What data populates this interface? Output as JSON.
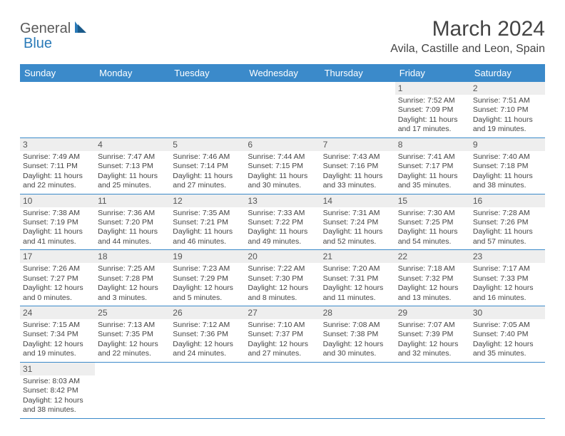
{
  "logo": {
    "part1": "General",
    "part2": "Blue"
  },
  "title": "March 2024",
  "location": "Avila, Castille and Leon, Spain",
  "colors": {
    "header_bg": "#3b8aca",
    "header_fg": "#ffffff",
    "daynum_bg": "#eeeeee",
    "border": "#3b8aca",
    "logo_blue": "#2a7ab8",
    "logo_gray": "#5a5a5a"
  },
  "weekdays": [
    "Sunday",
    "Monday",
    "Tuesday",
    "Wednesday",
    "Thursday",
    "Friday",
    "Saturday"
  ],
  "weeks": [
    [
      {
        "n": "",
        "lines": []
      },
      {
        "n": "",
        "lines": []
      },
      {
        "n": "",
        "lines": []
      },
      {
        "n": "",
        "lines": []
      },
      {
        "n": "",
        "lines": []
      },
      {
        "n": "1",
        "lines": [
          "Sunrise: 7:52 AM",
          "Sunset: 7:09 PM",
          "Daylight: 11 hours and 17 minutes."
        ]
      },
      {
        "n": "2",
        "lines": [
          "Sunrise: 7:51 AM",
          "Sunset: 7:10 PM",
          "Daylight: 11 hours and 19 minutes."
        ]
      }
    ],
    [
      {
        "n": "3",
        "lines": [
          "Sunrise: 7:49 AM",
          "Sunset: 7:11 PM",
          "Daylight: 11 hours and 22 minutes."
        ]
      },
      {
        "n": "4",
        "lines": [
          "Sunrise: 7:47 AM",
          "Sunset: 7:13 PM",
          "Daylight: 11 hours and 25 minutes."
        ]
      },
      {
        "n": "5",
        "lines": [
          "Sunrise: 7:46 AM",
          "Sunset: 7:14 PM",
          "Daylight: 11 hours and 27 minutes."
        ]
      },
      {
        "n": "6",
        "lines": [
          "Sunrise: 7:44 AM",
          "Sunset: 7:15 PM",
          "Daylight: 11 hours and 30 minutes."
        ]
      },
      {
        "n": "7",
        "lines": [
          "Sunrise: 7:43 AM",
          "Sunset: 7:16 PM",
          "Daylight: 11 hours and 33 minutes."
        ]
      },
      {
        "n": "8",
        "lines": [
          "Sunrise: 7:41 AM",
          "Sunset: 7:17 PM",
          "Daylight: 11 hours and 35 minutes."
        ]
      },
      {
        "n": "9",
        "lines": [
          "Sunrise: 7:40 AM",
          "Sunset: 7:18 PM",
          "Daylight: 11 hours and 38 minutes."
        ]
      }
    ],
    [
      {
        "n": "10",
        "lines": [
          "Sunrise: 7:38 AM",
          "Sunset: 7:19 PM",
          "Daylight: 11 hours and 41 minutes."
        ]
      },
      {
        "n": "11",
        "lines": [
          "Sunrise: 7:36 AM",
          "Sunset: 7:20 PM",
          "Daylight: 11 hours and 44 minutes."
        ]
      },
      {
        "n": "12",
        "lines": [
          "Sunrise: 7:35 AM",
          "Sunset: 7:21 PM",
          "Daylight: 11 hours and 46 minutes."
        ]
      },
      {
        "n": "13",
        "lines": [
          "Sunrise: 7:33 AM",
          "Sunset: 7:22 PM",
          "Daylight: 11 hours and 49 minutes."
        ]
      },
      {
        "n": "14",
        "lines": [
          "Sunrise: 7:31 AM",
          "Sunset: 7:24 PM",
          "Daylight: 11 hours and 52 minutes."
        ]
      },
      {
        "n": "15",
        "lines": [
          "Sunrise: 7:30 AM",
          "Sunset: 7:25 PM",
          "Daylight: 11 hours and 54 minutes."
        ]
      },
      {
        "n": "16",
        "lines": [
          "Sunrise: 7:28 AM",
          "Sunset: 7:26 PM",
          "Daylight: 11 hours and 57 minutes."
        ]
      }
    ],
    [
      {
        "n": "17",
        "lines": [
          "Sunrise: 7:26 AM",
          "Sunset: 7:27 PM",
          "Daylight: 12 hours and 0 minutes."
        ]
      },
      {
        "n": "18",
        "lines": [
          "Sunrise: 7:25 AM",
          "Sunset: 7:28 PM",
          "Daylight: 12 hours and 3 minutes."
        ]
      },
      {
        "n": "19",
        "lines": [
          "Sunrise: 7:23 AM",
          "Sunset: 7:29 PM",
          "Daylight: 12 hours and 5 minutes."
        ]
      },
      {
        "n": "20",
        "lines": [
          "Sunrise: 7:22 AM",
          "Sunset: 7:30 PM",
          "Daylight: 12 hours and 8 minutes."
        ]
      },
      {
        "n": "21",
        "lines": [
          "Sunrise: 7:20 AM",
          "Sunset: 7:31 PM",
          "Daylight: 12 hours and 11 minutes."
        ]
      },
      {
        "n": "22",
        "lines": [
          "Sunrise: 7:18 AM",
          "Sunset: 7:32 PM",
          "Daylight: 12 hours and 13 minutes."
        ]
      },
      {
        "n": "23",
        "lines": [
          "Sunrise: 7:17 AM",
          "Sunset: 7:33 PM",
          "Daylight: 12 hours and 16 minutes."
        ]
      }
    ],
    [
      {
        "n": "24",
        "lines": [
          "Sunrise: 7:15 AM",
          "Sunset: 7:34 PM",
          "Daylight: 12 hours and 19 minutes."
        ]
      },
      {
        "n": "25",
        "lines": [
          "Sunrise: 7:13 AM",
          "Sunset: 7:35 PM",
          "Daylight: 12 hours and 22 minutes."
        ]
      },
      {
        "n": "26",
        "lines": [
          "Sunrise: 7:12 AM",
          "Sunset: 7:36 PM",
          "Daylight: 12 hours and 24 minutes."
        ]
      },
      {
        "n": "27",
        "lines": [
          "Sunrise: 7:10 AM",
          "Sunset: 7:37 PM",
          "Daylight: 12 hours and 27 minutes."
        ]
      },
      {
        "n": "28",
        "lines": [
          "Sunrise: 7:08 AM",
          "Sunset: 7:38 PM",
          "Daylight: 12 hours and 30 minutes."
        ]
      },
      {
        "n": "29",
        "lines": [
          "Sunrise: 7:07 AM",
          "Sunset: 7:39 PM",
          "Daylight: 12 hours and 32 minutes."
        ]
      },
      {
        "n": "30",
        "lines": [
          "Sunrise: 7:05 AM",
          "Sunset: 7:40 PM",
          "Daylight: 12 hours and 35 minutes."
        ]
      }
    ],
    [
      {
        "n": "31",
        "lines": [
          "Sunrise: 8:03 AM",
          "Sunset: 8:42 PM",
          "Daylight: 12 hours and 38 minutes."
        ]
      },
      {
        "n": "",
        "lines": []
      },
      {
        "n": "",
        "lines": []
      },
      {
        "n": "",
        "lines": []
      },
      {
        "n": "",
        "lines": []
      },
      {
        "n": "",
        "lines": []
      },
      {
        "n": "",
        "lines": []
      }
    ]
  ]
}
